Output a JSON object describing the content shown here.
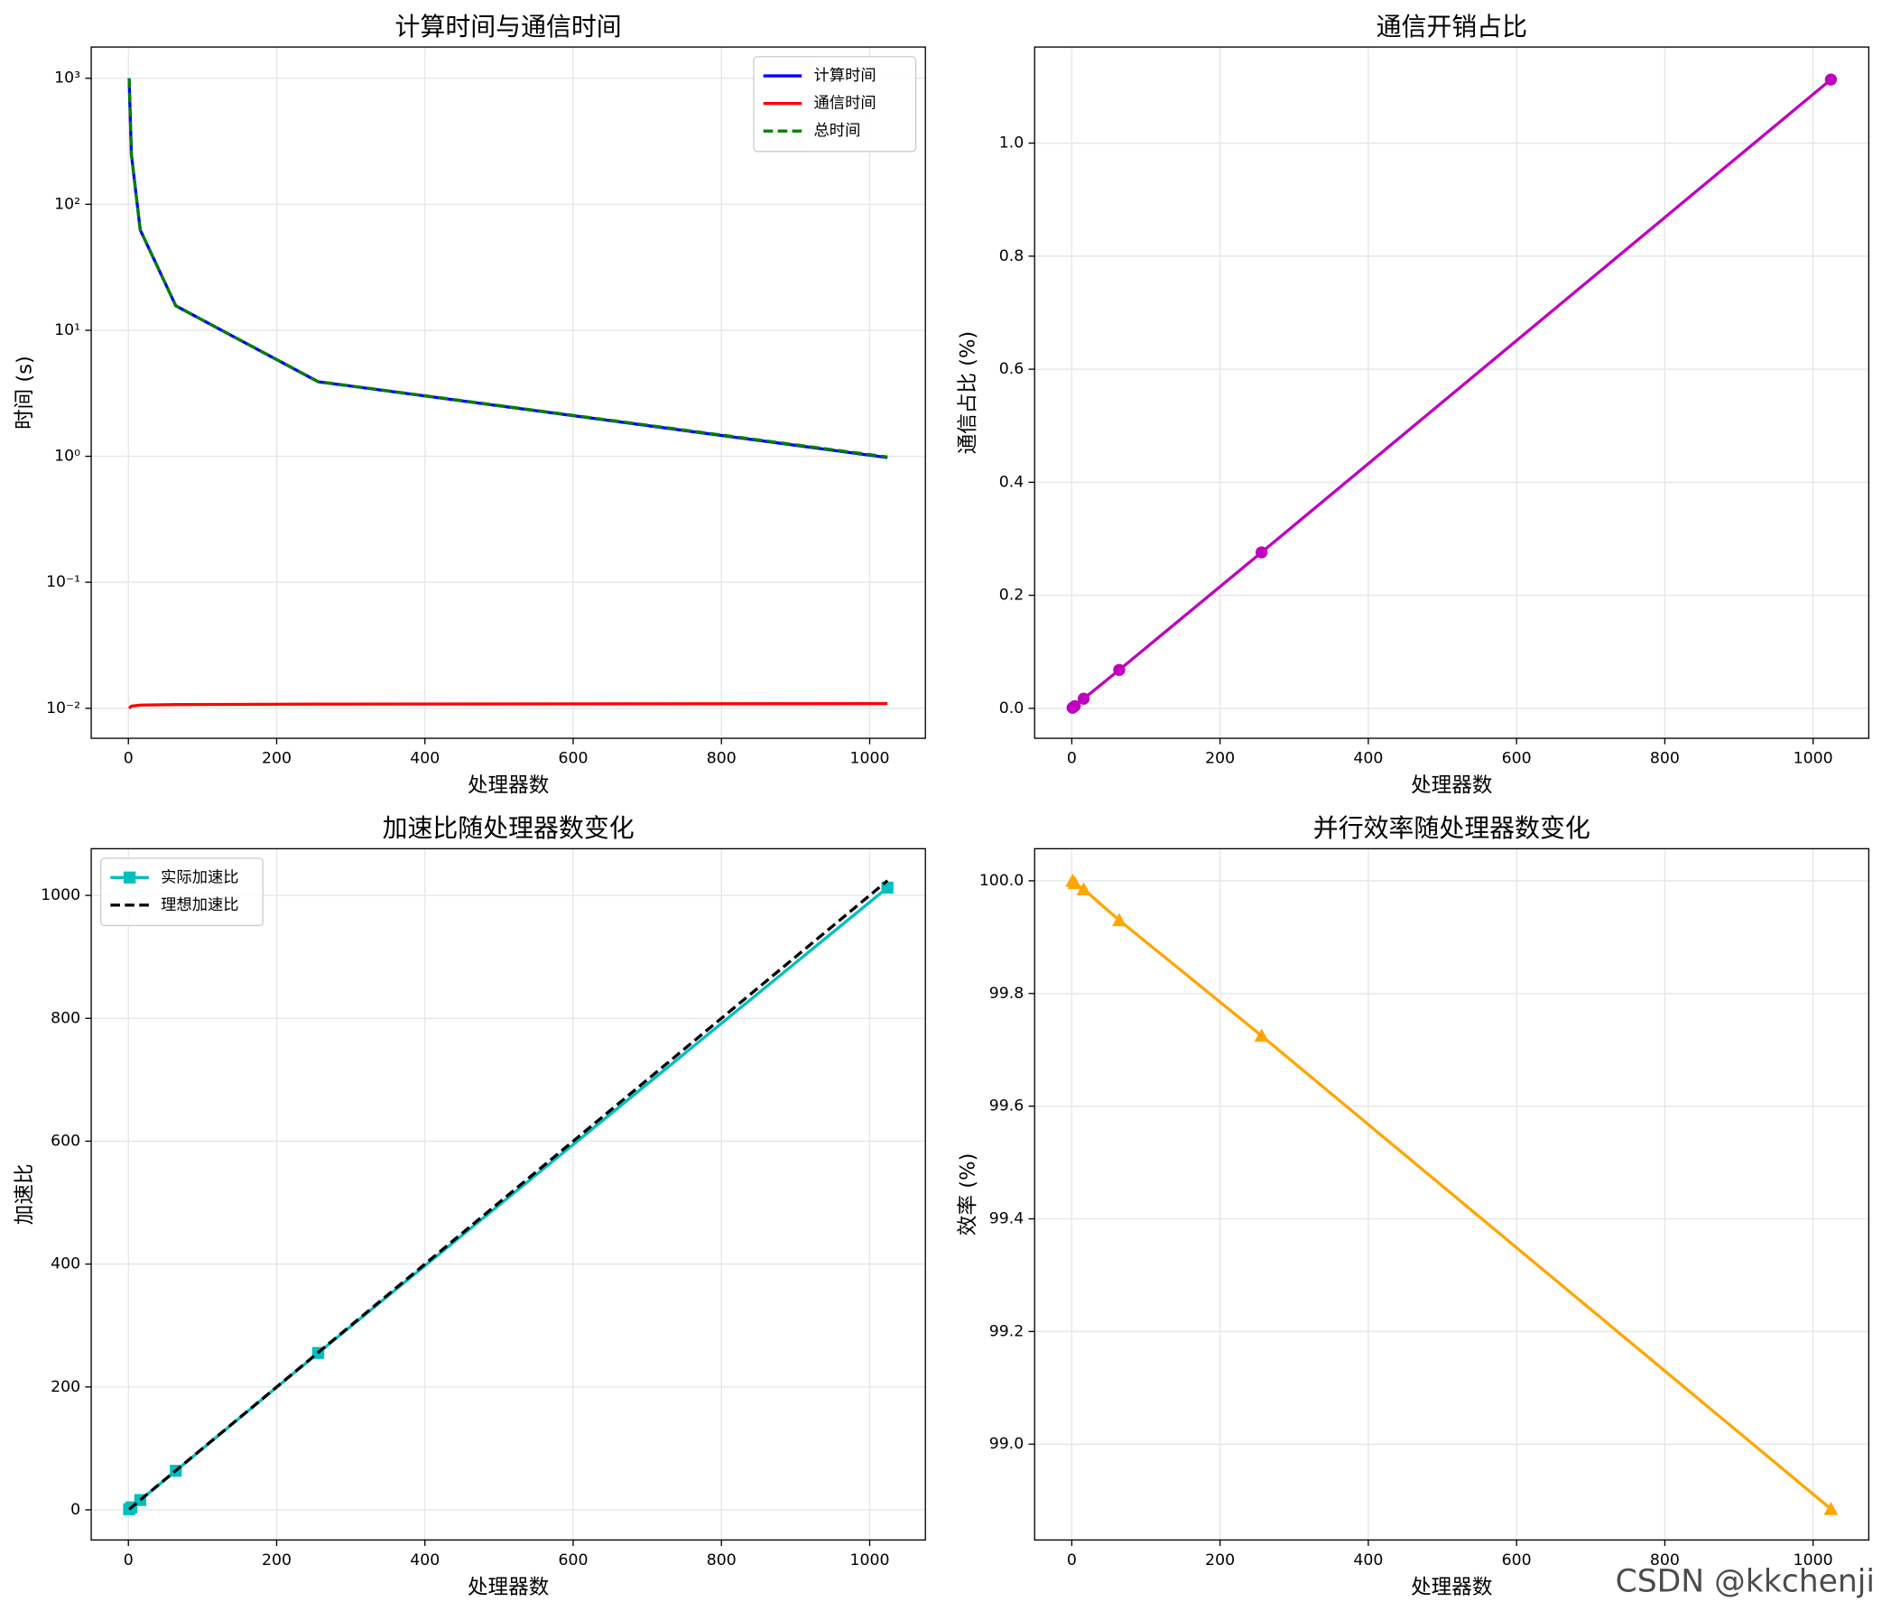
{
  "chart_data": [
    {
      "type": "line",
      "title": "计算时间与通信时间",
      "xlabel": "处理器数",
      "ylabel": "时间 (s)",
      "x": [
        1,
        4,
        16,
        64,
        256,
        1024
      ],
      "series": [
        {
          "name": "计算时间",
          "color": "#0000ff",
          "linestyle": "solid",
          "values": [
            1000,
            250,
            62.5,
            15.625,
            3.906,
            0.977
          ]
        },
        {
          "name": "通信时间",
          "color": "#ff0000",
          "linestyle": "solid",
          "values": [
            0.01,
            0.0104,
            0.0106,
            0.0107,
            0.0108,
            0.0109
          ]
        },
        {
          "name": "总时间",
          "color": "#008000",
          "linestyle": "dashed",
          "values": [
            1000.01,
            250.0104,
            62.5106,
            15.6357,
            3.9168,
            0.9879
          ]
        }
      ],
      "yscale": "log",
      "xlim": [
        -50.15,
        1075.15
      ],
      "ylim": [
        0.00578,
        1770
      ],
      "xticks": [
        0,
        200,
        400,
        600,
        800,
        1000
      ],
      "yticks": [
        {
          "value": 0.01,
          "label": "10⁻²"
        },
        {
          "value": 0.1,
          "label": "10⁻¹"
        },
        {
          "value": 1,
          "label": "10⁰"
        },
        {
          "value": 10,
          "label": "10¹"
        },
        {
          "value": 100,
          "label": "10²"
        },
        {
          "value": 1000,
          "label": "10³"
        }
      ],
      "grid": true,
      "legend": "upper-right"
    },
    {
      "type": "line",
      "title": "通信开销占比",
      "xlabel": "处理器数",
      "ylabel": "通信占比 (%)",
      "x": [
        1,
        4,
        16,
        64,
        256,
        1024
      ],
      "series": [
        {
          "color": "#bf00bf",
          "linestyle": "solid",
          "marker": "circle",
          "values": [
            0.001,
            0.004,
            0.017,
            0.068,
            0.276,
            1.1125
          ]
        }
      ],
      "xlim": [
        -50.15,
        1075.15
      ],
      "ylim": [
        -0.053,
        1.17
      ],
      "xticks": [
        0,
        200,
        400,
        600,
        800,
        1000
      ],
      "yticks": [
        {
          "value": 0,
          "label": "0.0"
        },
        0.2,
        0.4,
        0.6,
        0.8,
        {
          "value": 1,
          "label": "1.0"
        }
      ],
      "grid": true
    },
    {
      "type": "line",
      "title": "加速比随处理器数变化",
      "xlabel": "处理器数",
      "ylabel": "加速比",
      "x": [
        1,
        4,
        16,
        64,
        256,
        1024
      ],
      "series": [
        {
          "name": "实际加速比",
          "color": "#00bfbf",
          "linestyle": "solid",
          "marker": "square",
          "values": [
            1,
            3.99,
            15.97,
            63.6,
            255.3,
            1012.6
          ]
        },
        {
          "name": "理想加速比",
          "color": "#000000",
          "linestyle": "dashed",
          "values": [
            1,
            4,
            16,
            64,
            256,
            1024
          ]
        }
      ],
      "xlim": [
        -50.15,
        1075.15
      ],
      "ylim": [
        -49,
        1076
      ],
      "xticks": [
        0,
        200,
        400,
        600,
        800,
        1000
      ],
      "yticks": [
        0,
        200,
        400,
        600,
        800,
        1000
      ],
      "grid": true,
      "legend": "upper-left"
    },
    {
      "type": "line",
      "title": "并行效率随处理器数变化",
      "xlabel": "处理器数",
      "ylabel": "效率 (%)",
      "x": [
        1,
        4,
        16,
        64,
        256,
        1024
      ],
      "series": [
        {
          "color": "#ffa500",
          "linestyle": "solid",
          "marker": "triangle",
          "values": [
            100,
            99.996,
            99.985,
            99.93,
            99.725,
            98.885
          ]
        }
      ],
      "xlim": [
        -50.15,
        1075.15
      ],
      "ylim": [
        98.83,
        100.057
      ],
      "xticks": [
        0,
        200,
        400,
        600,
        800,
        1000
      ],
      "yticks": [
        {
          "value": 99,
          "label": "99.0"
        },
        99.2,
        99.4,
        99.6,
        99.8,
        {
          "value": 100,
          "label": "100.0"
        }
      ],
      "grid": true
    }
  ],
  "watermark": "CSDN @kkchenji"
}
